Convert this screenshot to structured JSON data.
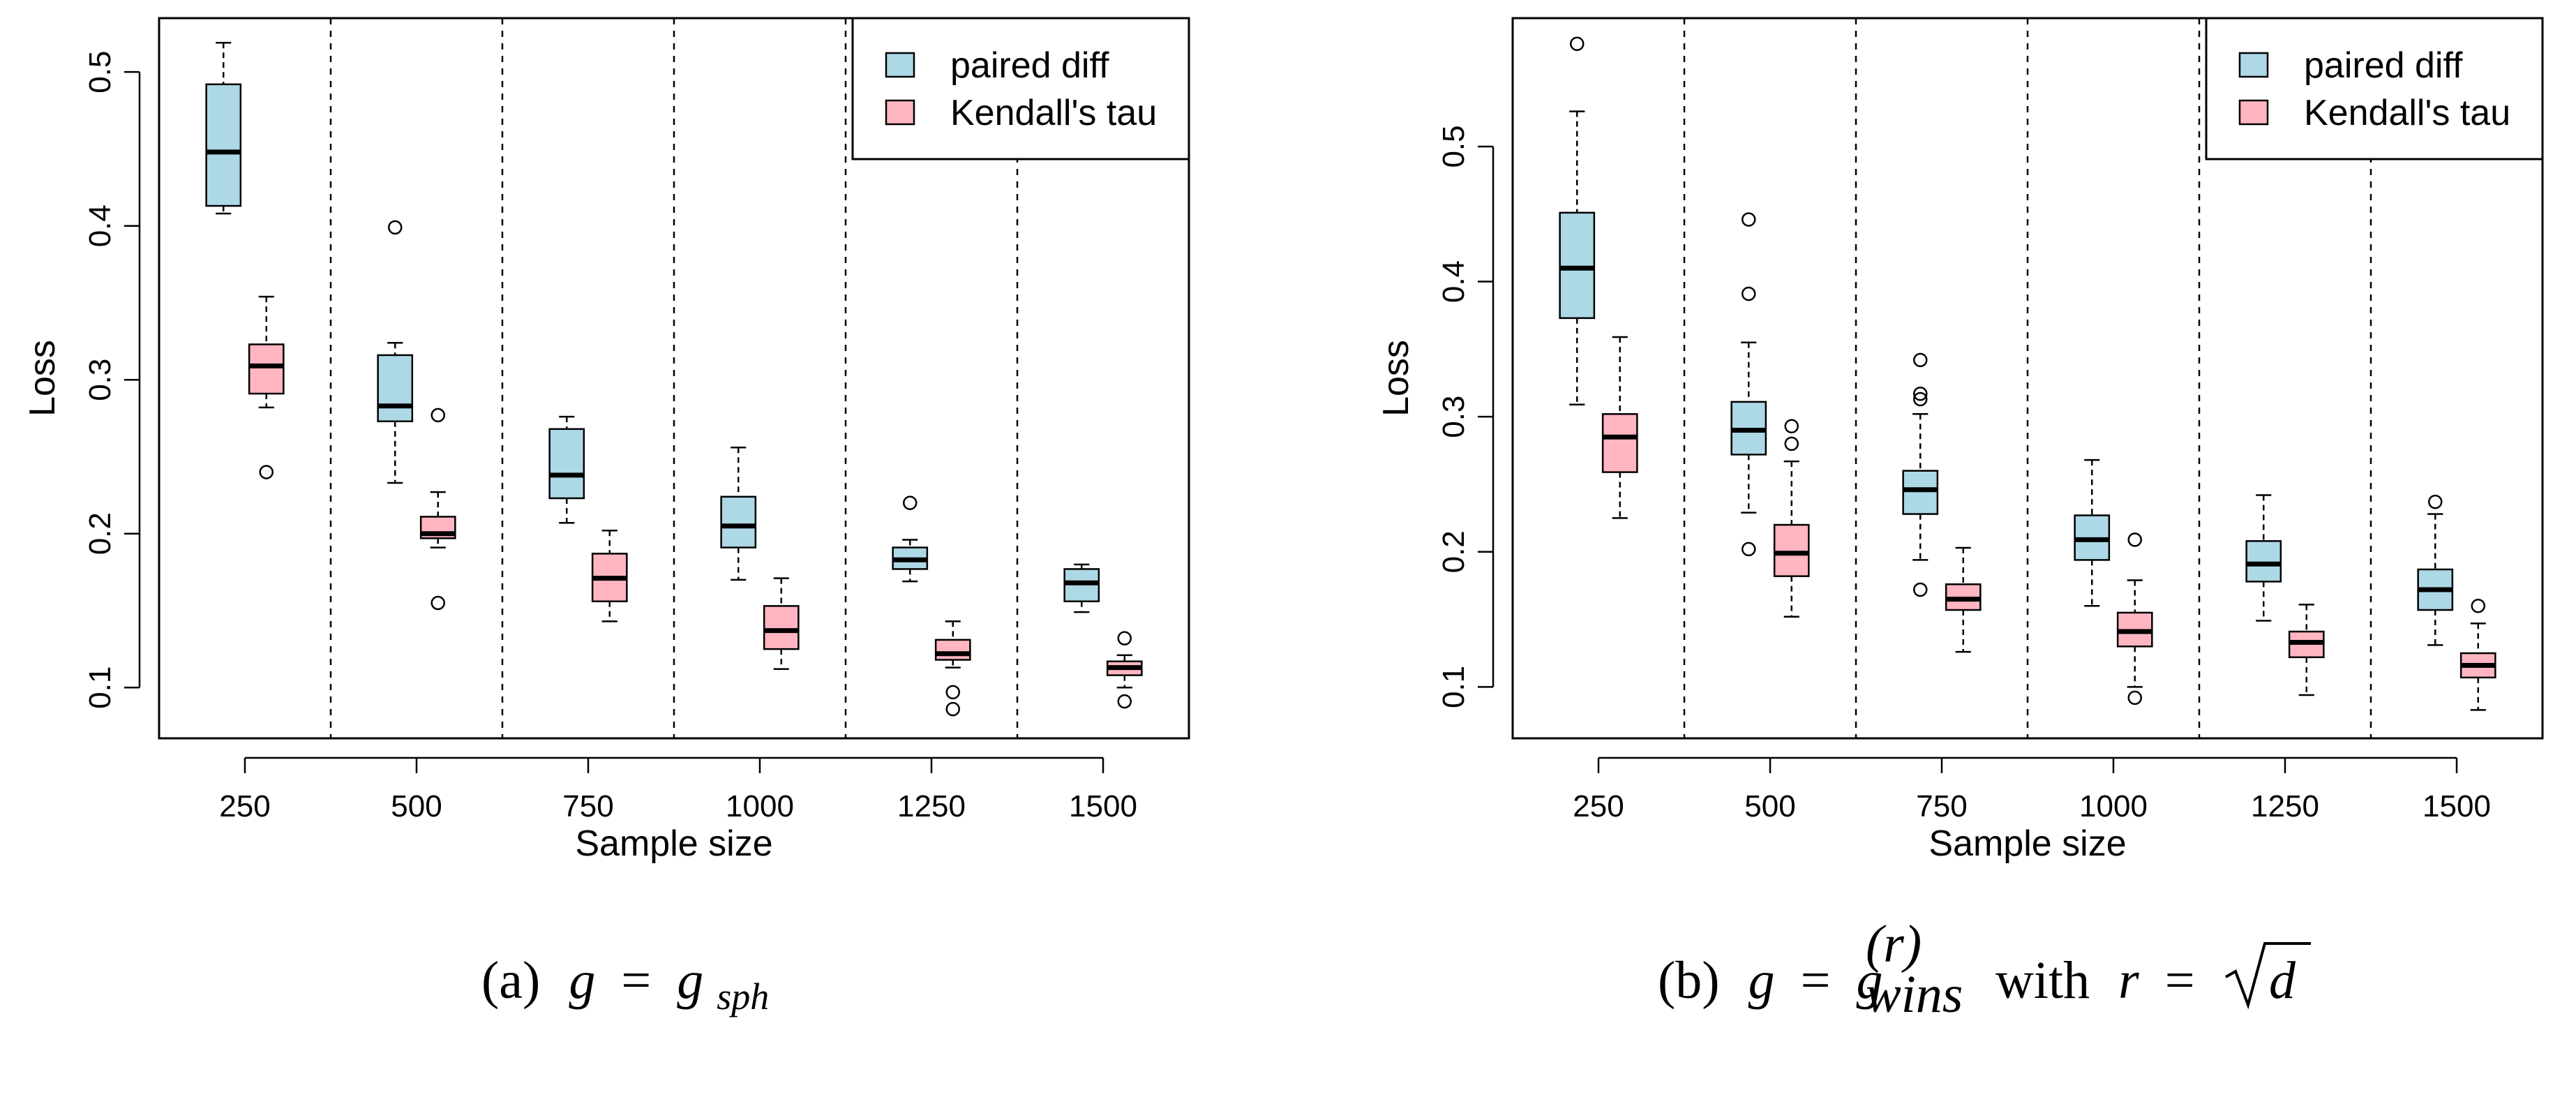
{
  "colors": {
    "paired_diff": "#add8e6",
    "kendalls_tau": "#ffb6c1",
    "stroke": "#000000"
  },
  "chart_data": [
    {
      "type": "boxplot",
      "xlabel": "Sample size",
      "ylabel": "Loss",
      "categories": [
        "250",
        "500",
        "750",
        "1000",
        "1250",
        "1500"
      ],
      "yticks": [
        "0.1",
        "0.2",
        "0.3",
        "0.4",
        "0.5"
      ],
      "ylim": [
        0.067,
        0.535
      ],
      "grid": false,
      "legend_position": "top-right",
      "series": [
        {
          "name": "paired diff",
          "boxes": [
            {
              "min": 0.408,
              "q1": 0.413,
              "median": 0.448,
              "q3": 0.492,
              "max": 0.519,
              "outliers": []
            },
            {
              "min": 0.233,
              "q1": 0.273,
              "median": 0.283,
              "q3": 0.316,
              "max": 0.324,
              "outliers": [
                0.399
              ]
            },
            {
              "min": 0.207,
              "q1": 0.223,
              "median": 0.238,
              "q3": 0.268,
              "max": 0.276,
              "outliers": []
            },
            {
              "min": 0.17,
              "q1": 0.191,
              "median": 0.205,
              "q3": 0.224,
              "max": 0.256,
              "outliers": []
            },
            {
              "min": 0.169,
              "q1": 0.177,
              "median": 0.183,
              "q3": 0.191,
              "max": 0.196,
              "outliers": [
                0.22
              ]
            },
            {
              "min": 0.149,
              "q1": 0.156,
              "median": 0.168,
              "q3": 0.177,
              "max": 0.18,
              "outliers": []
            }
          ]
        },
        {
          "name": "Kendall's tau",
          "boxes": [
            {
              "min": 0.282,
              "q1": 0.291,
              "median": 0.309,
              "q3": 0.323,
              "max": 0.354,
              "outliers": [
                0.24
              ]
            },
            {
              "min": 0.191,
              "q1": 0.197,
              "median": 0.2,
              "q3": 0.211,
              "max": 0.227,
              "outliers": [
                0.277,
                0.155
              ]
            },
            {
              "min": 0.143,
              "q1": 0.156,
              "median": 0.171,
              "q3": 0.187,
              "max": 0.202,
              "outliers": []
            },
            {
              "min": 0.112,
              "q1": 0.125,
              "median": 0.137,
              "q3": 0.153,
              "max": 0.171,
              "outliers": []
            },
            {
              "min": 0.113,
              "q1": 0.118,
              "median": 0.122,
              "q3": 0.131,
              "max": 0.143,
              "outliers": [
                0.097,
                0.086
              ]
            },
            {
              "min": 0.1,
              "q1": 0.108,
              "median": 0.113,
              "q3": 0.117,
              "max": 0.121,
              "outliers": [
                0.132,
                0.091
              ]
            }
          ]
        }
      ]
    },
    {
      "type": "boxplot",
      "xlabel": "Sample size",
      "ylabel": "Loss",
      "categories": [
        "250",
        "500",
        "750",
        "1000",
        "1250",
        "1500"
      ],
      "yticks": [
        "0.1",
        "0.2",
        "0.3",
        "0.4",
        "0.5"
      ],
      "ylim": [
        0.062,
        0.595
      ],
      "grid": false,
      "legend_position": "top-right",
      "series": [
        {
          "name": "paired diff",
          "boxes": [
            {
              "min": 0.309,
              "q1": 0.373,
              "median": 0.41,
              "q3": 0.451,
              "max": 0.526,
              "outliers": [
                0.576
              ]
            },
            {
              "min": 0.229,
              "q1": 0.272,
              "median": 0.29,
              "q3": 0.311,
              "max": 0.355,
              "outliers": [
                0.446,
                0.391,
                0.202
              ]
            },
            {
              "min": 0.194,
              "q1": 0.228,
              "median": 0.246,
              "q3": 0.26,
              "max": 0.302,
              "outliers": [
                0.342,
                0.317,
                0.313,
                0.172
              ]
            },
            {
              "min": 0.16,
              "q1": 0.194,
              "median": 0.209,
              "q3": 0.227,
              "max": 0.268,
              "outliers": []
            },
            {
              "min": 0.149,
              "q1": 0.178,
              "median": 0.191,
              "q3": 0.208,
              "max": 0.242,
              "outliers": []
            },
            {
              "min": 0.131,
              "q1": 0.157,
              "median": 0.172,
              "q3": 0.187,
              "max": 0.228,
              "outliers": [
                0.237
              ]
            }
          ]
        },
        {
          "name": "Kendall's tau",
          "boxes": [
            {
              "min": 0.225,
              "q1": 0.259,
              "median": 0.285,
              "q3": 0.302,
              "max": 0.359,
              "outliers": []
            },
            {
              "min": 0.152,
              "q1": 0.182,
              "median": 0.199,
              "q3": 0.22,
              "max": 0.267,
              "outliers": [
                0.293,
                0.28
              ]
            },
            {
              "min": 0.126,
              "q1": 0.157,
              "median": 0.165,
              "q3": 0.176,
              "max": 0.203,
              "outliers": []
            },
            {
              "min": 0.1,
              "q1": 0.13,
              "median": 0.141,
              "q3": 0.155,
              "max": 0.179,
              "outliers": [
                0.209,
                0.092
              ]
            },
            {
              "min": 0.094,
              "q1": 0.122,
              "median": 0.133,
              "q3": 0.141,
              "max": 0.161,
              "outliers": []
            },
            {
              "min": 0.083,
              "q1": 0.107,
              "median": 0.116,
              "q3": 0.125,
              "max": 0.147,
              "outliers": [
                0.16
              ]
            }
          ]
        }
      ]
    }
  ],
  "captions": [
    {
      "label": "(a)",
      "g_lhs": "g",
      "eq": "=",
      "g_rhs": "g",
      "sub": "sph"
    },
    {
      "label": "(b)",
      "g_lhs": "g",
      "eq": "=",
      "g_rhs": "g",
      "sup": "(r)",
      "sub": "wins",
      "with": "with",
      "r": "r",
      "eq2": "=",
      "d": "d"
    }
  ]
}
